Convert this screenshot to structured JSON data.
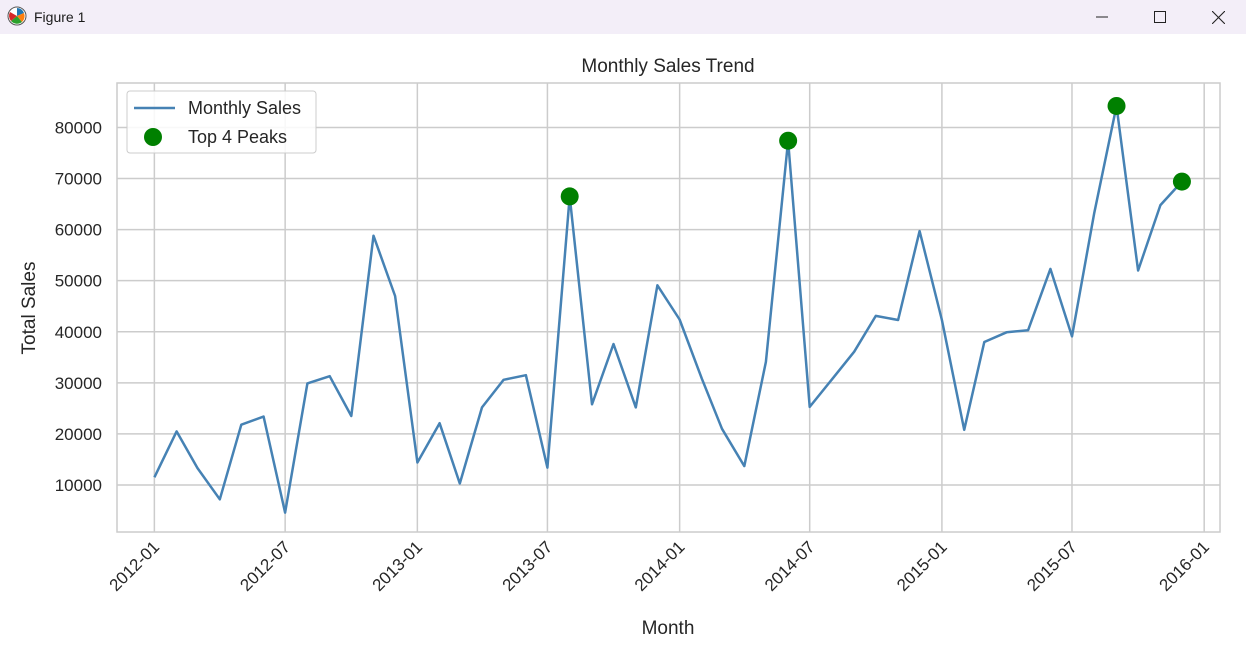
{
  "window": {
    "title": "Figure 1",
    "icon": "matplotlib-logo-icon",
    "controls": [
      "minimize-icon",
      "maximize-icon",
      "close-icon"
    ]
  },
  "chart_data": {
    "type": "line",
    "title": "Monthly Sales Trend",
    "xlabel": "Month",
    "ylabel": "Total Sales",
    "x": [
      "2012-01",
      "2012-02",
      "2012-03",
      "2012-04",
      "2012-05",
      "2012-06",
      "2012-07",
      "2012-08",
      "2012-09",
      "2012-10",
      "2012-11",
      "2012-12",
      "2013-01",
      "2013-02",
      "2013-03",
      "2013-04",
      "2013-05",
      "2013-06",
      "2013-07",
      "2013-08",
      "2013-09",
      "2013-10",
      "2013-11",
      "2013-12",
      "2014-01",
      "2014-02",
      "2014-03",
      "2014-04",
      "2014-05",
      "2014-06",
      "2014-07",
      "2014-08",
      "2014-09",
      "2014-10",
      "2014-11",
      "2014-12",
      "2015-01",
      "2015-02",
      "2015-03",
      "2015-04",
      "2015-05",
      "2015-06",
      "2015-07",
      "2015-08",
      "2015-09",
      "2015-10",
      "2015-11",
      "2015-12"
    ],
    "series": [
      {
        "name": "Monthly Sales",
        "color": "#4682b4",
        "values": [
          11500,
          20500,
          13300,
          7200,
          21800,
          23400,
          4600,
          29900,
          31300,
          23500,
          58800,
          47000,
          14400,
          22100,
          10300,
          25200,
          30600,
          31500,
          13400,
          66500,
          25800,
          37600,
          25200,
          49100,
          42400,
          30800,
          21000,
          13700,
          34100,
          77400,
          25300,
          30700,
          36100,
          43100,
          42300,
          59700,
          42300,
          20800,
          38000,
          39900,
          40300,
          52300,
          39100,
          63300,
          84200,
          52000,
          64800,
          69400
        ]
      },
      {
        "name": "Top 4 Peaks",
        "color": "#008000",
        "points": [
          {
            "x": "2013-08",
            "y": 66500
          },
          {
            "x": "2014-06",
            "y": 77400
          },
          {
            "x": "2015-09",
            "y": 84200
          },
          {
            "x": "2015-12",
            "y": 69400
          }
        ]
      }
    ],
    "xticks": [
      "2012-01",
      "2012-07",
      "2013-01",
      "2013-07",
      "2014-01",
      "2014-07",
      "2015-01",
      "2015-07",
      "2016-01"
    ],
    "yticks": [
      10000,
      20000,
      30000,
      40000,
      50000,
      60000,
      70000,
      80000
    ],
    "xlim": [
      "2011-11-10",
      "2016-01-23"
    ],
    "ylim": [
      800,
      88700
    ],
    "grid": true,
    "legend": "upper-left"
  }
}
